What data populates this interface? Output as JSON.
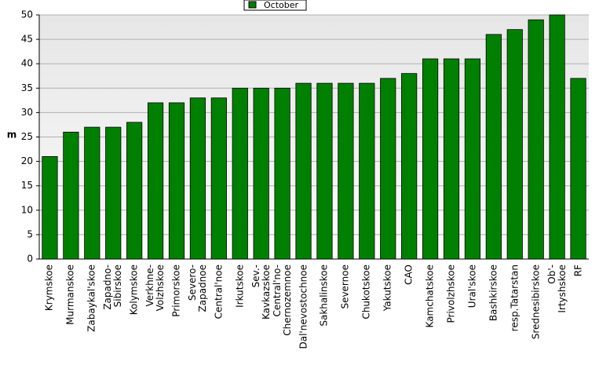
{
  "chart_data": {
    "type": "bar",
    "legend_label": "October",
    "ylabel": "m",
    "categories": [
      "Krymskoe",
      "Murmanskoe",
      "Zabaykal'skoe",
      "Zapadno-\nSibirskoe",
      "Kolymskoe",
      "Verkhne-\nVolzhskoe",
      "Primorskoe",
      "Severo-\nZapadnoe",
      "Central'noe",
      "Irkutskoe",
      "Sev.-\nKavkazskoe",
      "Central'no-\nChernozemnoe",
      "Dal'nevostochnoe",
      "Sakhalinskoe",
      "Severnoe",
      "Chukotskoe",
      "Yakutskoe",
      "CAO",
      "Kamchatskoe",
      "Privolzhskoe",
      "Ural'skoe",
      "Bashkirskoe",
      "resp.Tatarstan",
      "Srednesibirskoe",
      "Ob'-\nIrtyshskoe",
      "RF"
    ],
    "values": [
      21,
      26,
      27,
      27,
      28,
      32,
      32,
      33,
      33,
      35,
      35,
      35,
      36,
      36,
      36,
      36,
      37,
      38,
      41,
      41,
      41,
      46,
      47,
      49,
      50,
      37
    ],
    "color": "#008000",
    "ylim": [
      0,
      50
    ],
    "yticks": [
      0,
      5,
      10,
      15,
      20,
      25,
      30,
      35,
      40,
      45,
      50
    ],
    "grid": true
  }
}
